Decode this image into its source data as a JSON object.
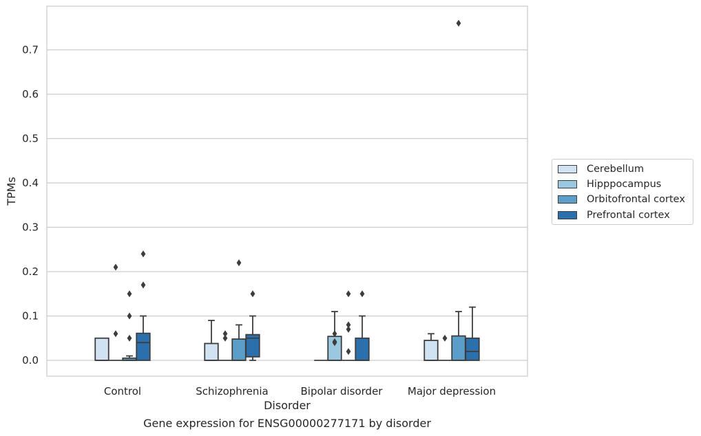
{
  "caption": "Gene expression for ENSG00000277171 by disorder",
  "chart_data": {
    "type": "box",
    "xlabel": "Disorder",
    "ylabel": "TPMs",
    "ylim": [
      -0.037,
      0.8
    ],
    "yticks": [
      "0.0",
      "0.1",
      "0.2",
      "0.3",
      "0.4",
      "0.5",
      "0.6",
      "0.7"
    ],
    "grid": "horizontal",
    "legend_position": "right",
    "categories": [
      "Control",
      "Schizophrenia",
      "Bipolar disorder",
      "Major depression"
    ],
    "series": [
      {
        "name": "Cerebellum",
        "color": "#d1e2f2",
        "boxes": [
          {
            "q1": 0.0,
            "median": 0.0,
            "q3": 0.05,
            "whislo": 0.0,
            "whishi": 0.05,
            "fliers": []
          },
          {
            "q1": 0.0,
            "median": 0.0,
            "q3": 0.038,
            "whislo": 0.0,
            "whishi": 0.09,
            "fliers": []
          },
          {
            "q1": 0.0,
            "median": 0.0,
            "q3": 0.0,
            "whislo": 0.0,
            "whishi": 0.0,
            "fliers": []
          },
          {
            "q1": 0.0,
            "median": 0.0,
            "q3": 0.045,
            "whislo": 0.0,
            "whishi": 0.06,
            "fliers": []
          }
        ]
      },
      {
        "name": "Hipppocampus",
        "color": "#9ac8e0",
        "boxes": [
          {
            "q1": 0.0,
            "median": 0.0,
            "q3": 0.0,
            "whislo": 0.0,
            "whishi": 0.0,
            "fliers": [
              0.21,
              0.06
            ]
          },
          {
            "q1": 0.0,
            "median": 0.0,
            "q3": 0.0,
            "whislo": 0.0,
            "whishi": 0.0,
            "fliers": [
              0.06,
              0.05
            ]
          },
          {
            "q1": 0.0,
            "median": 0.0,
            "q3": 0.054,
            "whislo": 0.0,
            "whishi": 0.11,
            "fliers": [
              0.06,
              0.042,
              0.04
            ]
          },
          {
            "q1": 0.0,
            "median": 0.0,
            "q3": 0.0,
            "whislo": 0.0,
            "whishi": 0.0,
            "fliers": [
              0.05
            ]
          }
        ]
      },
      {
        "name": "Orbitofrontal cortex",
        "color": "#5a9ec9",
        "boxes": [
          {
            "q1": 0.0,
            "median": 0.0,
            "q3": 0.005,
            "whislo": 0.0,
            "whishi": 0.01,
            "fliers": [
              0.15,
              0.1,
              0.05
            ]
          },
          {
            "q1": 0.0,
            "median": 0.0,
            "q3": 0.048,
            "whislo": 0.0,
            "whishi": 0.08,
            "fliers": [
              0.22
            ]
          },
          {
            "q1": 0.0,
            "median": 0.0,
            "q3": 0.0,
            "whislo": 0.0,
            "whishi": 0.0,
            "fliers": [
              0.15,
              0.08,
              0.07,
              0.02
            ]
          },
          {
            "q1": 0.0,
            "median": 0.0,
            "q3": 0.055,
            "whislo": 0.0,
            "whishi": 0.11,
            "fliers": [
              0.76
            ]
          }
        ]
      },
      {
        "name": "Prefrontal cortex",
        "color": "#2c6fad",
        "boxes": [
          {
            "q1": 0.0,
            "median": 0.04,
            "q3": 0.061,
            "whislo": 0.0,
            "whishi": 0.1,
            "fliers": [
              0.24,
              0.17
            ]
          },
          {
            "q1": 0.008,
            "median": 0.05,
            "q3": 0.058,
            "whislo": 0.0,
            "whishi": 0.1,
            "fliers": [
              0.15
            ]
          },
          {
            "q1": 0.0,
            "median": 0.0,
            "q3": 0.05,
            "whislo": 0.0,
            "whishi": 0.1,
            "fliers": [
              0.15
            ]
          },
          {
            "q1": 0.0,
            "median": 0.02,
            "q3": 0.05,
            "whislo": 0.0,
            "whishi": 0.12,
            "fliers": []
          }
        ]
      }
    ]
  }
}
